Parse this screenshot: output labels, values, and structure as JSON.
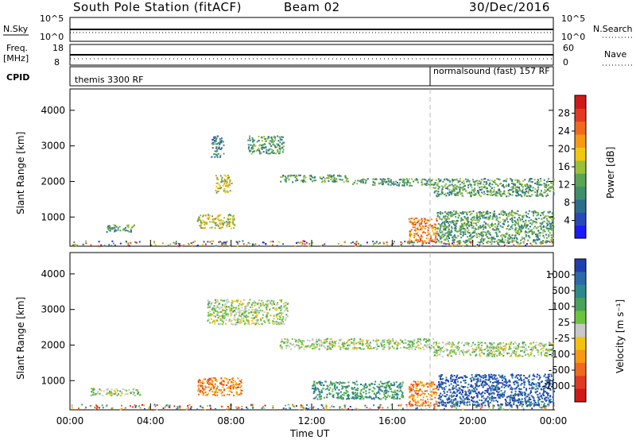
{
  "header": {
    "title": "South Pole Station (fitACF)",
    "beam": "Beam 02",
    "date": "30/Dec/2016"
  },
  "panels": {
    "nsky": {
      "label": "N.Sky",
      "ticks": [
        "10^5",
        "10^0"
      ],
      "right_label": "N.Search",
      "right_ticks": [
        "10^5",
        "10^0"
      ]
    },
    "freq": {
      "label1": "Freq.",
      "label2": "[MHz]",
      "ticks": [
        "18",
        "8"
      ],
      "right_label": "Nave",
      "right_ticks": [
        "60",
        "0"
      ]
    },
    "cpid": {
      "label": "CPID",
      "segments": [
        "themis 3300 RF",
        "normalsound (fast) 157 RF"
      ]
    }
  },
  "chart_data": [
    {
      "type": "heatmap",
      "title": "",
      "ylabel": "Slant Range [km]",
      "xlabel": "Time UT",
      "x_ticks": [
        "00:00",
        "04:00",
        "08:00",
        "12:00",
        "16:00",
        "20:00",
        "00:00"
      ],
      "y_ticks": [
        "1000",
        "2000",
        "3000",
        "4000"
      ],
      "ylim": [
        180,
        4600
      ],
      "colorbar": {
        "label": "Power [dB]",
        "ticks": [
          "4",
          "8",
          "12",
          "16",
          "20",
          "24",
          "28"
        ],
        "colors": [
          "#1a1aff",
          "#2a49b8",
          "#2b6e8c",
          "#3f8f6a",
          "#5aa453",
          "#9bc038",
          "#f2c80f",
          "#f59a12",
          "#f06a1c",
          "#e43a22",
          "#d01a1a"
        ]
      },
      "regions": [
        {
          "t": [
            0.0,
            24.0
          ],
          "r": [
            200,
            350
          ],
          "level": "mixed"
        },
        {
          "t": [
            1.8,
            3.2
          ],
          "r": [
            600,
            800
          ],
          "level": 10
        },
        {
          "t": [
            6.3,
            8.2
          ],
          "r": [
            700,
            1100
          ],
          "level": 18
        },
        {
          "t": [
            7.0,
            7.6
          ],
          "r": [
            2700,
            3300
          ],
          "level": 8
        },
        {
          "t": [
            8.8,
            10.6
          ],
          "r": [
            2800,
            3300
          ],
          "level": 12
        },
        {
          "t": [
            7.2,
            8.0
          ],
          "r": [
            1700,
            2200
          ],
          "level": 16
        },
        {
          "t": [
            10.4,
            13.8
          ],
          "r": [
            2000,
            2200
          ],
          "level": 10
        },
        {
          "t": [
            14.0,
            18.0
          ],
          "r": [
            1900,
            2100
          ],
          "level": 10
        },
        {
          "t": [
            18.0,
            24.0
          ],
          "r": [
            1600,
            2100
          ],
          "level": 10
        },
        {
          "t": [
            16.8,
            18.2
          ],
          "r": [
            300,
            1000
          ],
          "level": 22
        },
        {
          "t": [
            18.2,
            24.0
          ],
          "r": [
            300,
            1200
          ],
          "level": 12
        }
      ]
    },
    {
      "type": "heatmap",
      "title": "",
      "ylabel": "Slant Range [km]",
      "xlabel": "Time UT",
      "x_ticks": [
        "00:00",
        "04:00",
        "08:00",
        "12:00",
        "16:00",
        "20:00",
        "00:00"
      ],
      "y_ticks": [
        "1000",
        "2000",
        "3000",
        "4000"
      ],
      "ylim": [
        180,
        4600
      ],
      "colorbar": {
        "label": "Velocity [m s⁻¹]",
        "ticks": [
          "1000",
          "500",
          "100",
          "25",
          "-25",
          "-100",
          "-500",
          "-1000"
        ],
        "colors": [
          "#1f3fb0",
          "#2a6aa8",
          "#2e8a8a",
          "#48a25a",
          "#6cc43c",
          "#c8c8c8",
          "#f2c20f",
          "#f59a12",
          "#ef6a1c",
          "#e03a22",
          "#d01818"
        ]
      },
      "regions": [
        {
          "t": [
            0.0,
            24.0
          ],
          "r": [
            200,
            350
          ],
          "level": "mixed"
        },
        {
          "t": [
            1.0,
            3.5
          ],
          "r": [
            600,
            800
          ],
          "v": 0
        },
        {
          "t": [
            6.3,
            8.5
          ],
          "r": [
            600,
            1100
          ],
          "v": -300
        },
        {
          "t": [
            6.8,
            10.8
          ],
          "r": [
            2600,
            3300
          ],
          "v": 0
        },
        {
          "t": [
            10.4,
            18.0
          ],
          "r": [
            1900,
            2200
          ],
          "v": 0
        },
        {
          "t": [
            18.0,
            24.0
          ],
          "r": [
            1700,
            2100
          ],
          "v": 0
        },
        {
          "t": [
            12.0,
            16.5
          ],
          "r": [
            500,
            1000
          ],
          "v": 100
        },
        {
          "t": [
            16.8,
            18.2
          ],
          "r": [
            300,
            1000
          ],
          "v": -500
        },
        {
          "t": [
            18.2,
            24.0
          ],
          "r": [
            300,
            1200
          ],
          "v": 500
        }
      ]
    }
  ]
}
